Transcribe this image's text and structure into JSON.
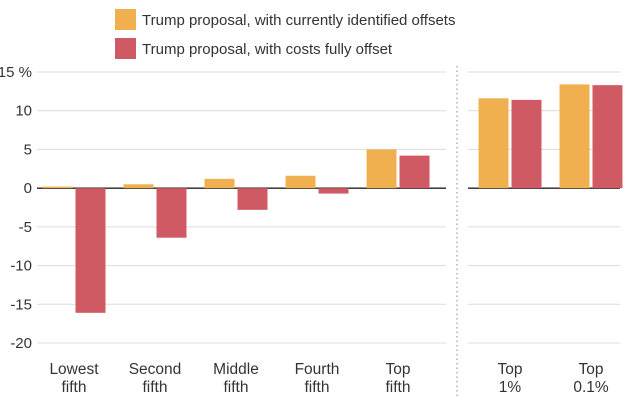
{
  "chart_data": {
    "type": "bar",
    "title": "",
    "xlabel": "",
    "ylabel": "",
    "ylim": [
      -20,
      15
    ],
    "yticks": [
      15,
      10,
      5,
      0,
      -5,
      -10,
      -15,
      -20
    ],
    "ytick_labels": [
      "15 %",
      "10",
      "5",
      "0",
      "-5",
      "-10",
      "-15",
      "-20"
    ],
    "grid": true,
    "legend_position": "top",
    "categories": [
      {
        "line1": "Lowest",
        "line2": "fifth"
      },
      {
        "line1": "Second",
        "line2": "fifth"
      },
      {
        "line1": "Middle",
        "line2": "fifth"
      },
      {
        "line1": "Fourth",
        "line2": "fifth"
      },
      {
        "line1": "Top",
        "line2": "fifth"
      },
      {
        "line1": "Top",
        "line2": "1%"
      },
      {
        "line1": "Top",
        "line2": "0.1%"
      }
    ],
    "panel_split_after_category": 5,
    "series": [
      {
        "name": "Trump proposal, with currently identified offsets",
        "color": "#f0b050",
        "values": [
          0.2,
          0.5,
          1.2,
          1.6,
          5.0,
          11.6,
          13.4
        ]
      },
      {
        "name": "Trump proposal, with costs fully offset",
        "color": "#d05a63",
        "values": [
          -16.1,
          -6.4,
          -2.8,
          -0.7,
          4.2,
          11.4,
          13.3
        ]
      }
    ]
  }
}
